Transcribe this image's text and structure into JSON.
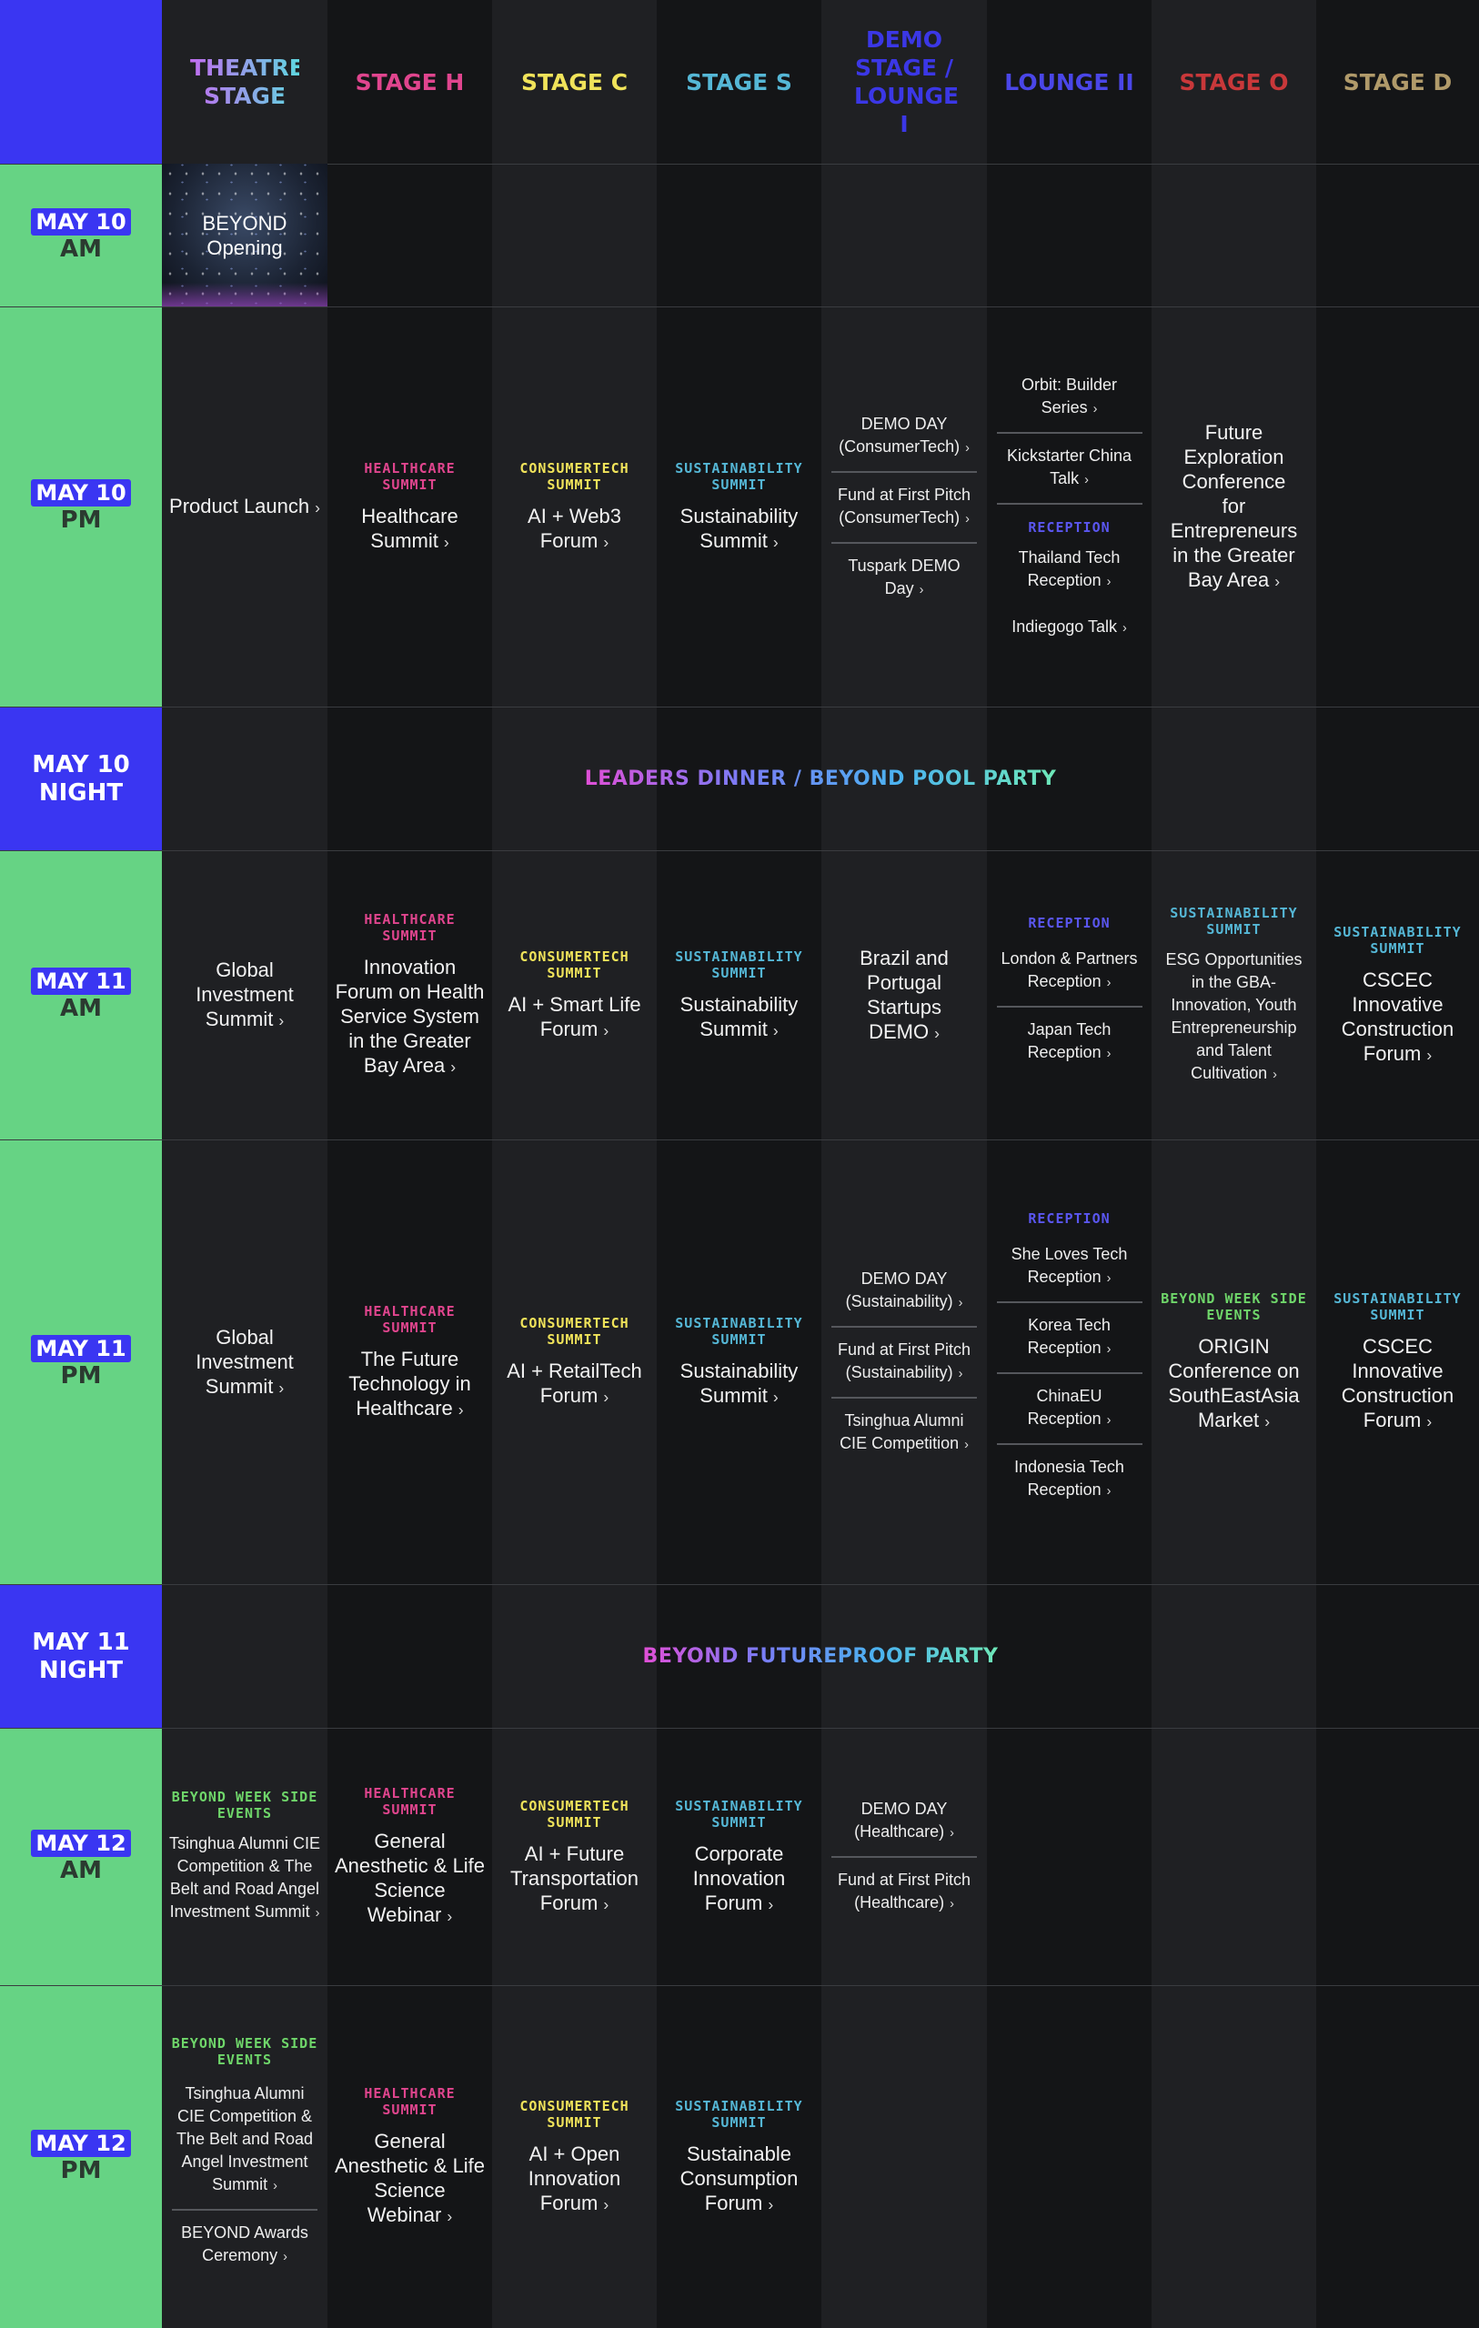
{
  "columns": [
    {
      "label": "THEATRE STAGE",
      "color": "#6f9ff5"
    },
    {
      "label": "STAGE H",
      "color": "#e0458e"
    },
    {
      "label": "STAGE C",
      "color": "#f0e35a"
    },
    {
      "label": "STAGE S",
      "color": "#55b7d6"
    },
    {
      "label": "DEMO STAGE / LOUNGE I",
      "color": "#3b37e6"
    },
    {
      "label": "LOUNGE II",
      "color": "#4a46e8"
    },
    {
      "label": "STAGE O",
      "color": "#c9383a"
    },
    {
      "label": "STAGE D",
      "color": "#b09a6a"
    }
  ],
  "colors": {
    "healthcare": "#e0458e",
    "consumertech": "#f0e35a",
    "sustainability": "#55b7d6",
    "reception": "#5a56f0",
    "side_events": "#6fd66a",
    "day_label_bg": "#66d384",
    "night_label_bg": "#3a36f2"
  },
  "rows": [
    {
      "date": "MAY 10",
      "period": "AM"
    },
    {
      "date": "MAY 10",
      "period": "PM"
    },
    {
      "night": "MAY 10 NIGHT",
      "party": "LEADERS DINNER / BEYOND POOL PARTY"
    },
    {
      "date": "MAY 11",
      "period": "AM"
    },
    {
      "date": "MAY 11",
      "period": "PM"
    },
    {
      "night": "MAY 11 NIGHT",
      "party": "BEYOND FUTUREPROOF PARTY"
    },
    {
      "date": "MAY 12",
      "period": "AM"
    },
    {
      "date": "MAY 12",
      "period": "PM"
    }
  ],
  "labels": {
    "healthcare": "HEALTHCARE SUMMIT",
    "consumertech": "CONSUMERTECH SUMMIT",
    "sustainability": "SUSTAINABILITY SUMMIT",
    "reception": "RECEPTION",
    "side_events": "BEYOND WEEK SIDE EVENTS"
  },
  "cells": {
    "may10am_theatre": "BEYOND Opening",
    "may10pm": {
      "theatre": "Product Launch",
      "h": "Healthcare Summit",
      "c": "AI + Web3 Forum",
      "s": "Sustainability Summit",
      "demo": [
        "DEMO DAY (ConsumerTech)",
        "Fund at First Pitch (ConsumerTech)",
        "Tuspark DEMO Day"
      ],
      "lounge_top": [
        "Orbit: Builder Series",
        "Kickstarter China Talk"
      ],
      "lounge_reception": [
        "Thailand Tech Reception",
        "Indiegogo Talk"
      ],
      "o": "Future Exploration Conference for Entrepreneurs in the Greater Bay Area"
    },
    "may11am": {
      "theatre": "Global Investment Summit",
      "h": "Innovation Forum on Health Service System in the Greater Bay Area",
      "c": "AI + Smart Life Forum",
      "s": "Sustainability Summit",
      "demo": "Brazil and Portugal Startups DEMO",
      "lounge": [
        "London & Partners Reception",
        "Japan Tech Reception"
      ],
      "o": "ESG Opportunities in the GBA-Innovation, Youth Entrepreneurship and Talent Cultivation",
      "d": "CSCEC Innovative Construction Forum"
    },
    "may11pm": {
      "theatre": "Global Investment Summit",
      "h": "The Future Technology in Healthcare",
      "c": "AI + RetailTech Forum",
      "s": "Sustainability Summit",
      "demo": [
        "DEMO DAY (Sustainability)",
        "Fund at First Pitch (Sustainability)",
        "Tsinghua Alumni CIE Competition"
      ],
      "lounge": [
        "She Loves Tech Reception",
        "Korea Tech Reception",
        "ChinaEU Reception",
        "Indonesia Tech Reception"
      ],
      "o": "ORIGIN Conference on SouthEastAsia Market",
      "d": "CSCEC Innovative Construction Forum"
    },
    "may12am": {
      "theatre": "Tsinghua Alumni CIE Competition & The Belt and Road Angel Investment Summit",
      "h": "General Anesthetic & Life Science Webinar",
      "c": "AI + Future Transportation Forum",
      "s": "Corporate Innovation Forum",
      "demo": [
        "DEMO DAY (Healthcare)",
        "Fund at First Pitch (Healthcare)"
      ]
    },
    "may12pm": {
      "theatre": [
        "Tsinghua Alumni CIE Competition & The Belt and Road Angel Investment Summit",
        "BEYOND Awards Ceremony"
      ],
      "h": "General Anesthetic & Life Science Webinar",
      "c": "AI + Open Innovation Forum",
      "s": "Sustainable Consumption Forum"
    }
  },
  "arrow": "›"
}
